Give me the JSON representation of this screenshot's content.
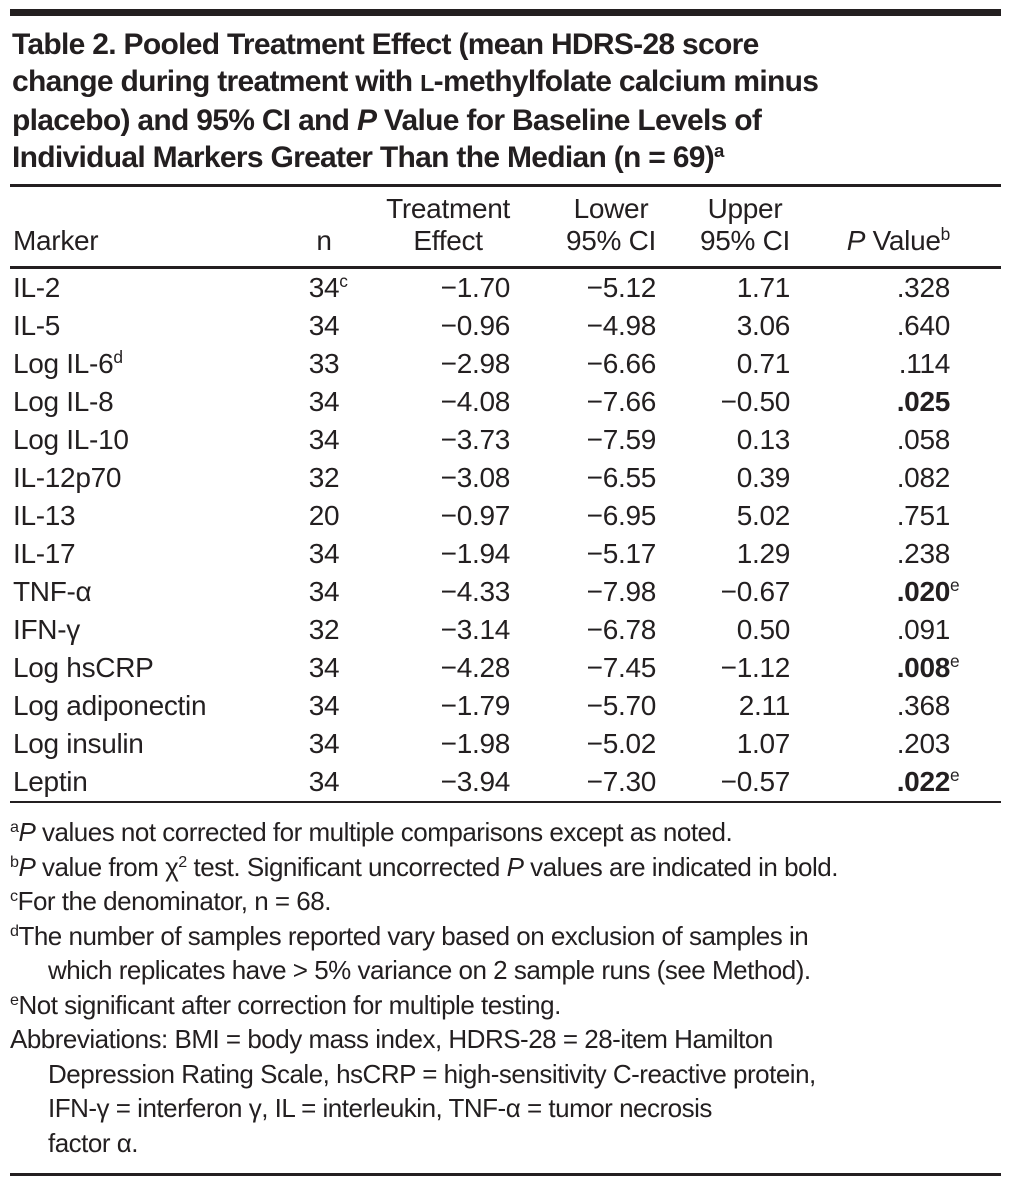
{
  "colors": {
    "text": "#231f20",
    "rule": "#231f20",
    "background": "#ffffff"
  },
  "title": {
    "lines": [
      [
        {
          "t": "Table 2. Pooled Treatment Effect (mean HDRS-28 score"
        }
      ],
      [
        {
          "t": "change during treatment with "
        },
        {
          "s": "sc",
          "t": "L"
        },
        {
          "t": "-methylfolate calcium minus"
        }
      ],
      [
        {
          "t": "placebo) and 95% CI and "
        },
        {
          "s": "i",
          "t": "P"
        },
        {
          "t": " Value for Baseline Levels of"
        }
      ],
      [
        {
          "t": "Individual Markers Greater Than the Median (n = 69)"
        },
        {
          "s": "sup",
          "t": "a"
        }
      ]
    ]
  },
  "table": {
    "columns": {
      "marker": {
        "line1": "",
        "line2": "Marker"
      },
      "n": {
        "line1": "",
        "line2": "n"
      },
      "effect": {
        "line1": "Treatment",
        "line2": "Effect"
      },
      "lower": {
        "line1": "Lower",
        "line2": "95% CI"
      },
      "upper": {
        "line1": "Upper",
        "line2": "95% CI"
      },
      "p": {
        "line2_segments": [
          {
            "s": "i",
            "t": "P"
          },
          {
            "t": " Value"
          },
          {
            "s": "sup",
            "t": "b"
          }
        ]
      }
    },
    "rows": [
      {
        "marker": "IL-2",
        "marker_sup": "",
        "n": "34",
        "n_sup": "c",
        "effect": "−1.70",
        "lower": "−5.12",
        "upper": "1.71",
        "p": ".328",
        "p_sup": "",
        "p_bold": false
      },
      {
        "marker": "IL-5",
        "marker_sup": "",
        "n": "34",
        "n_sup": "",
        "effect": "−0.96",
        "lower": "−4.98",
        "upper": "3.06",
        "p": ".640",
        "p_sup": "",
        "p_bold": false
      },
      {
        "marker": "Log IL-6",
        "marker_sup": "d",
        "n": "33",
        "n_sup": "",
        "effect": "−2.98",
        "lower": "−6.66",
        "upper": "0.71",
        "p": ".114",
        "p_sup": "",
        "p_bold": false
      },
      {
        "marker": "Log IL-8",
        "marker_sup": "",
        "n": "34",
        "n_sup": "",
        "effect": "−4.08",
        "lower": "−7.66",
        "upper": "−0.50",
        "p": ".025",
        "p_sup": "",
        "p_bold": true
      },
      {
        "marker": "Log IL-10",
        "marker_sup": "",
        "n": "34",
        "n_sup": "",
        "effect": "−3.73",
        "lower": "−7.59",
        "upper": "0.13",
        "p": ".058",
        "p_sup": "",
        "p_bold": false
      },
      {
        "marker": "IL-12p70",
        "marker_sup": "",
        "n": "32",
        "n_sup": "",
        "effect": "−3.08",
        "lower": "−6.55",
        "upper": "0.39",
        "p": ".082",
        "p_sup": "",
        "p_bold": false
      },
      {
        "marker": "IL-13",
        "marker_sup": "",
        "n": "20",
        "n_sup": "",
        "effect": "−0.97",
        "lower": "−6.95",
        "upper": "5.02",
        "p": ".751",
        "p_sup": "",
        "p_bold": false
      },
      {
        "marker": "IL-17",
        "marker_sup": "",
        "n": "34",
        "n_sup": "",
        "effect": "−1.94",
        "lower": "−5.17",
        "upper": "1.29",
        "p": ".238",
        "p_sup": "",
        "p_bold": false
      },
      {
        "marker": "TNF-α",
        "marker_sup": "",
        "n": "34",
        "n_sup": "",
        "effect": "−4.33",
        "lower": "−7.98",
        "upper": "−0.67",
        "p": ".020",
        "p_sup": "e",
        "p_bold": true
      },
      {
        "marker": "IFN-γ",
        "marker_sup": "",
        "n": "32",
        "n_sup": "",
        "effect": "−3.14",
        "lower": "−6.78",
        "upper": "0.50",
        "p": ".091",
        "p_sup": "",
        "p_bold": false
      },
      {
        "marker": "Log hsCRP",
        "marker_sup": "",
        "n": "34",
        "n_sup": "",
        "effect": "−4.28",
        "lower": "−7.45",
        "upper": "−1.12",
        "p": ".008",
        "p_sup": "e",
        "p_bold": true
      },
      {
        "marker": "Log adiponectin",
        "marker_sup": "",
        "n": "34",
        "n_sup": "",
        "effect": "−1.79",
        "lower": "−5.70",
        "upper": "2.11",
        "p": ".368",
        "p_sup": "",
        "p_bold": false
      },
      {
        "marker": "Log insulin",
        "marker_sup": "",
        "n": "34",
        "n_sup": "",
        "effect": "−1.98",
        "lower": "−5.02",
        "upper": "1.07",
        "p": ".203",
        "p_sup": "",
        "p_bold": false
      },
      {
        "marker": "Leptin",
        "marker_sup": "",
        "n": "34",
        "n_sup": "",
        "effect": "−3.94",
        "lower": "−7.30",
        "upper": "−0.57",
        "p": ".022",
        "p_sup": "e",
        "p_bold": true
      }
    ]
  },
  "footnotes": [
    {
      "segments": [
        {
          "s": "sup",
          "t": "a"
        },
        {
          "s": "i",
          "t": "P"
        },
        {
          "t": " values not corrected for multiple comparisons except as noted."
        }
      ]
    },
    {
      "segments": [
        {
          "s": "sup",
          "t": "b"
        },
        {
          "s": "i",
          "t": "P"
        },
        {
          "t": " value from χ"
        },
        {
          "s": "sup",
          "t": "2"
        },
        {
          "t": " test. Significant uncorrected "
        },
        {
          "s": "i",
          "t": "P"
        },
        {
          "t": " values are indicated in bold."
        }
      ]
    },
    {
      "segments": [
        {
          "s": "sup",
          "t": "c"
        },
        {
          "t": "For the denominator, n = 68."
        }
      ]
    },
    {
      "segments": [
        {
          "s": "sup",
          "t": "d"
        },
        {
          "t": "The number of samples reported vary based on exclusion of samples in"
        },
        {
          "s": "br"
        },
        {
          "t": "which replicates have > 5% variance on 2 sample runs (see Method)."
        }
      ]
    },
    {
      "segments": [
        {
          "s": "sup",
          "t": "e"
        },
        {
          "t": "Not significant after correction for multiple testing."
        }
      ]
    },
    {
      "segments": [
        {
          "t": "Abbreviations: BMI = body mass index, HDRS-28 = 28-item Hamilton"
        },
        {
          "s": "br"
        },
        {
          "t": "Depression Rating Scale, hsCRP = high-sensitivity C-reactive protein,"
        },
        {
          "s": "br"
        },
        {
          "t": "IFN-γ = interferon γ, IL = interleukin, TNF-α = tumor necrosis"
        },
        {
          "s": "br"
        },
        {
          "t": "factor α."
        }
      ]
    }
  ]
}
